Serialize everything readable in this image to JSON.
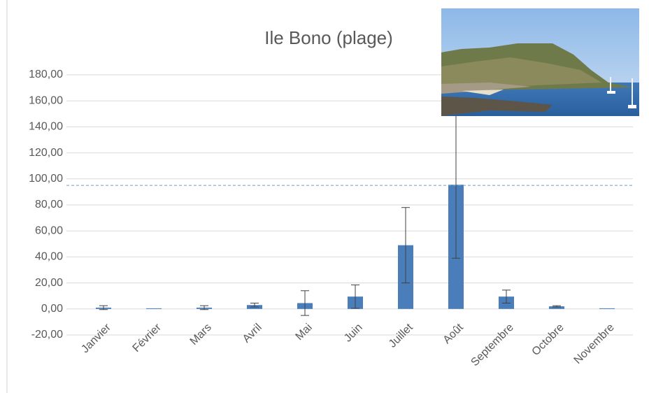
{
  "chart_data": {
    "type": "bar",
    "title": "Ile Bono (plage)",
    "categories": [
      "Janvier",
      "Février",
      "Mars",
      "Avril",
      "Mai",
      "Juin",
      "Juillet",
      "Août",
      "Septembre",
      "Octobre",
      "Novembre"
    ],
    "values": [
      1,
      0.5,
      1,
      3,
      4.5,
      9.5,
      49,
      95.5,
      9.5,
      2,
      0.5
    ],
    "errors": [
      1.5,
      0,
      1.5,
      1.5,
      9.5,
      9,
      29,
      56.5,
      5,
      0.5,
      0
    ],
    "color": "#4a7ebb",
    "reference_line": 95,
    "reference_color": "#6a9fd0",
    "ylim": [
      -20,
      180
    ],
    "yticks": [
      {
        "value": -20,
        "label": "-20,00"
      },
      {
        "value": 0,
        "label": "0,00"
      },
      {
        "value": 20,
        "label": "20,00"
      },
      {
        "value": 40,
        "label": "40,00"
      },
      {
        "value": 60,
        "label": "60,00"
      },
      {
        "value": 80,
        "label": "80,00"
      },
      {
        "value": 100,
        "label": "100,00"
      },
      {
        "value": 120,
        "label": "120,00"
      },
      {
        "value": 140,
        "label": "140,00"
      },
      {
        "value": 160,
        "label": "160,00"
      },
      {
        "value": 180,
        "label": "180,00"
      }
    ],
    "grid": true
  }
}
